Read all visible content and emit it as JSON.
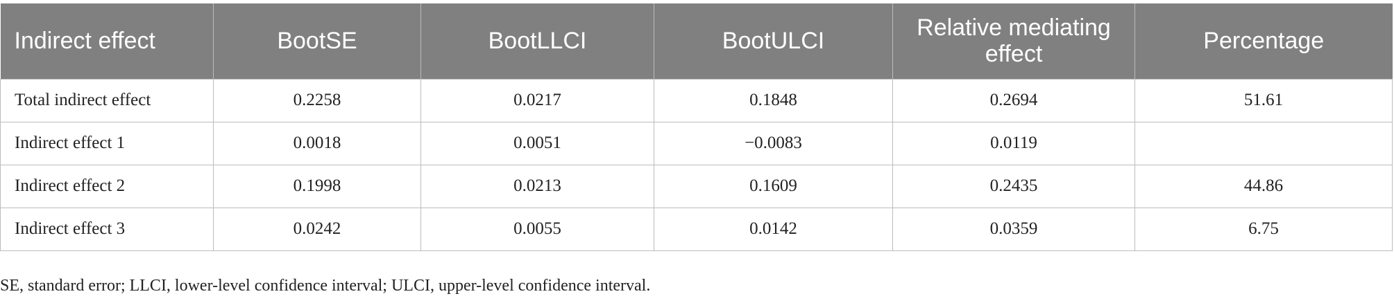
{
  "table": {
    "header": [
      "Indirect effect",
      "BootSE",
      "BootLLCI",
      "BootULCI",
      "Relative mediating effect",
      "Percentage"
    ],
    "rows": [
      [
        "Total indirect effect",
        "0.2258",
        "0.0217",
        "0.1848",
        "0.2694",
        "51.61"
      ],
      [
        "Indirect effect 1",
        "0.0018",
        "0.0051",
        "−0.0083",
        "0.0119",
        null
      ],
      [
        "Indirect effect 2",
        "0.1998",
        "0.0213",
        "0.1609",
        "0.2435",
        "44.86"
      ],
      [
        "Indirect effect 3",
        "0.0242",
        "0.0055",
        "0.0142",
        "0.0359",
        "6.75"
      ]
    ]
  },
  "footnote": "SE, standard error; LLCI, lower-level confidence interval; ULCI, upper-level confidence interval."
}
